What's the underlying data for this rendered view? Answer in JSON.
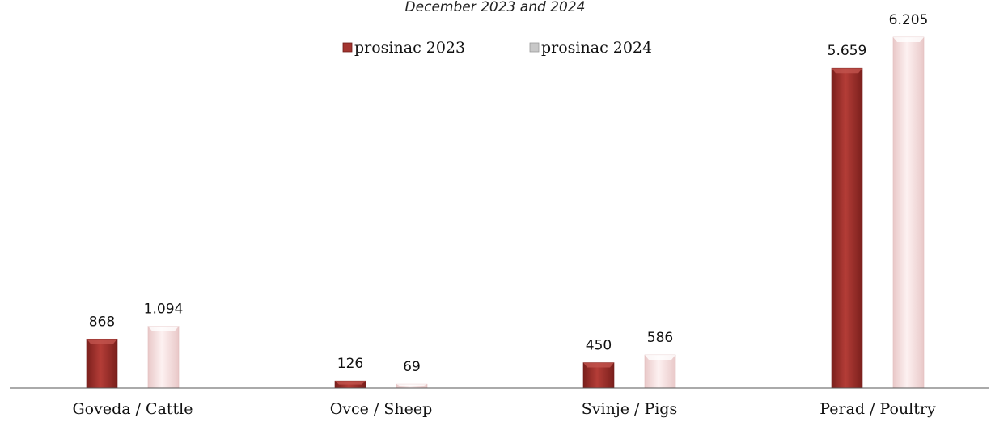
{
  "chart_data": {
    "type": "bar",
    "subtitle": "December 2023 and 2024",
    "categories": [
      "Goveda / Cattle",
      "Ovce / Sheep",
      "Svinje / Pigs",
      "Perad / Poultry"
    ],
    "series": [
      {
        "name": "prosinac 2023",
        "values": [
          868,
          126,
          450,
          5659
        ],
        "labels": [
          "868",
          "126",
          "450",
          "5.659"
        ],
        "color": "#a33530"
      },
      {
        "name": "prosinac 2024",
        "values": [
          1094,
          69,
          586,
          6205
        ],
        "labels": [
          "1.094",
          "69",
          "586",
          "6.205"
        ],
        "color": "#f6dede"
      }
    ],
    "ylim": [
      0,
      6500
    ],
    "grid": false,
    "legend": "top-center"
  }
}
